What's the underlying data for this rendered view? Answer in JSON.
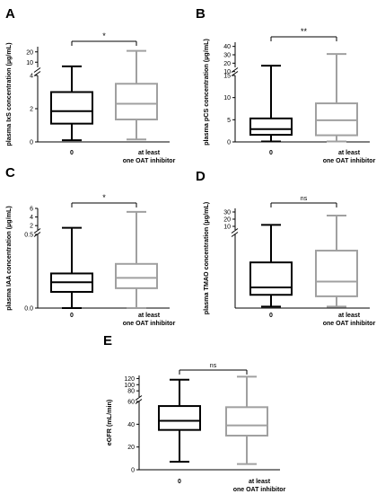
{
  "colors": {
    "group0": "#000000",
    "group1": "#a0a0a0",
    "axis": "#000000"
  },
  "chart_data": [
    {
      "panel": "A",
      "type": "box",
      "ylabel": "plasma IxS concentration (µg/mL)",
      "categories": [
        "0",
        "at least\none OAT inhibitor"
      ],
      "y_axis_broken": true,
      "ylim_lower": [
        0,
        4
      ],
      "ylim_upper": [
        5,
        25
      ],
      "yticks_lower": [
        "0",
        "2",
        "4"
      ],
      "yticks_upper": [
        "10",
        "20"
      ],
      "series": [
        {
          "whisker_low": 0.1,
          "q1": 1.1,
          "median": 1.85,
          "q3": 3.0,
          "whisker_high": 6
        },
        {
          "whisker_low": 0.15,
          "q1": 1.35,
          "median": 2.3,
          "q3": 3.5,
          "whisker_high": 21
        }
      ],
      "significance": "*"
    },
    {
      "panel": "B",
      "type": "box",
      "ylabel": "plasma pCS concentration (µg/mL)",
      "categories": [
        "0",
        "at least\none OAT inhibitor"
      ],
      "y_axis_broken": true,
      "ylim_lower": [
        0,
        15
      ],
      "ylim_upper": [
        15,
        45
      ],
      "yticks_lower": [
        "0",
        "5",
        "10",
        "15"
      ],
      "yticks_upper": [
        "10",
        "20",
        "30",
        "40"
      ],
      "series": [
        {
          "whisker_low": 0.1,
          "q1": 1.6,
          "median": 2.9,
          "q3": 5.3,
          "whisker_high": 17
        },
        {
          "whisker_low": 0.1,
          "q1": 1.5,
          "median": 4.9,
          "q3": 8.7,
          "whisker_high": 31
        }
      ],
      "significance": "**"
    },
    {
      "panel": "C",
      "type": "box",
      "ylabel": "plasma IAA concentration (µg/mL)",
      "categories": [
        "0",
        "at least\none OAT inhibitor"
      ],
      "y_axis_broken": true,
      "ylim_lower": [
        0,
        1
      ],
      "ylim_upper": [
        1,
        6
      ],
      "yticks_lower": [
        "0.0",
        "0.5"
      ],
      "yticks_upper": [
        "2",
        "4",
        "6"
      ],
      "series": [
        {
          "whisker_low": 0.0,
          "q1": 0.22,
          "median": 0.35,
          "q3": 0.47,
          "whisker_high": 1.5
        },
        {
          "whisker_low": 0.0,
          "q1": 0.27,
          "median": 0.41,
          "q3": 0.6,
          "whisker_high": 5.2
        }
      ],
      "significance": "*"
    },
    {
      "panel": "D",
      "type": "box",
      "ylabel": "plasma TMAO concentration (µg/mL)",
      "categories": [
        "0",
        "at least\none OAT inhibitor"
      ],
      "y_axis_broken": true,
      "ylim_lower": [
        0,
        5
      ],
      "ylim_upper": [
        5,
        35
      ],
      "yticks_lower": [],
      "yticks_upper": [
        "10",
        "20",
        "30"
      ],
      "series": [
        {
          "whisker_low": 0.1,
          "q1": 0.9,
          "median": 1.4,
          "q3": 3.1,
          "whisker_high": 12
        },
        {
          "whisker_low": 0.1,
          "q1": 0.8,
          "median": 1.8,
          "q3": 3.9,
          "whisker_high": 25
        }
      ],
      "significance": "ns"
    },
    {
      "panel": "E",
      "type": "box",
      "ylabel": "eGFR (mL/min)",
      "categories": [
        "0",
        "at least\none OAT inhibitor"
      ],
      "y_axis_broken": true,
      "ylim_lower": [
        0,
        60
      ],
      "ylim_upper": [
        60,
        130
      ],
      "yticks_lower": [
        "0",
        "20",
        "40",
        "60"
      ],
      "yticks_upper": [
        "80",
        "100",
        "120"
      ],
      "series": [
        {
          "whisker_low": 7,
          "q1": 35,
          "median": 43,
          "q3": 56,
          "whisker_high": 116
        },
        {
          "whisker_low": 5,
          "q1": 30,
          "median": 39,
          "q3": 55,
          "whisker_high": 126
        }
      ],
      "significance": "ns"
    }
  ]
}
